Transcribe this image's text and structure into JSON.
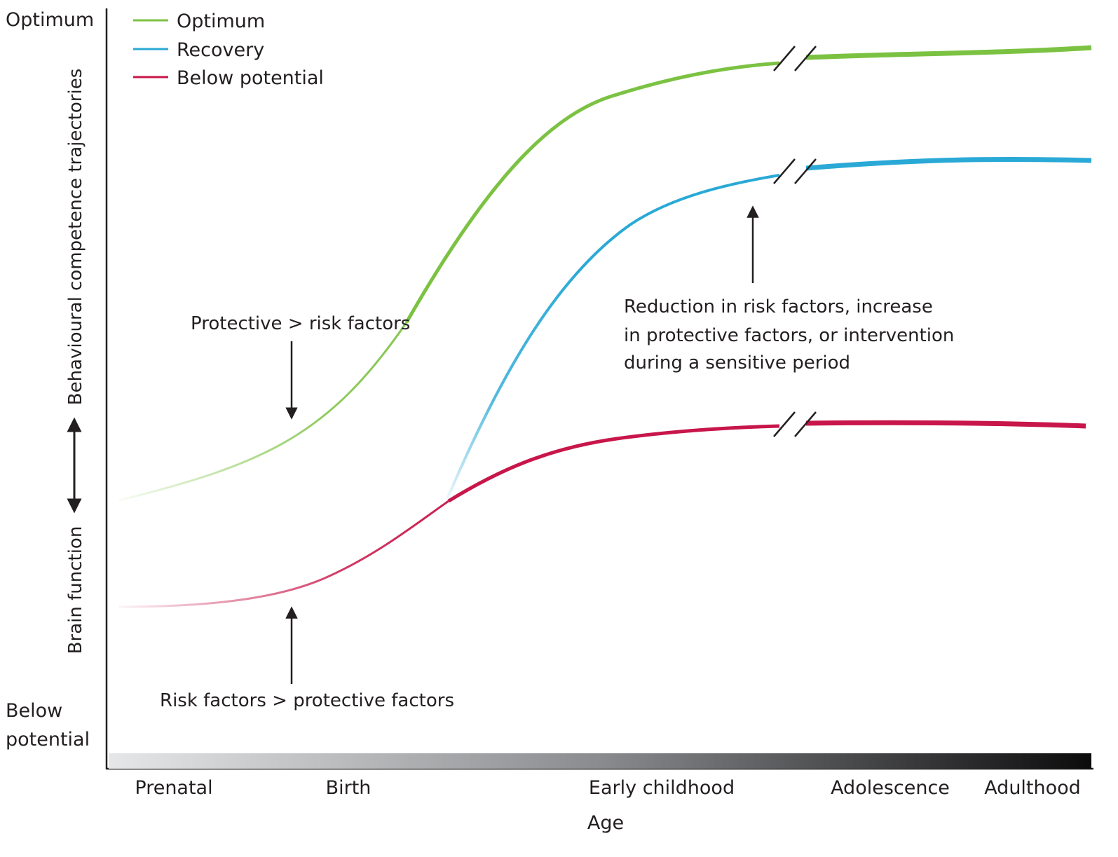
{
  "y_axis": {
    "top_label": "Optimum",
    "bottom_label_line1": "Below",
    "bottom_label_line2": "potential",
    "title_upper": "Behavioural competence trajectories",
    "title_lower": "Brain function"
  },
  "x_axis": {
    "title": "Age",
    "ticks": [
      "Prenatal",
      "Birth",
      "Early childhood",
      "Adolescence",
      "Adulthood"
    ]
  },
  "legend": [
    {
      "label": "Optimum",
      "color": "#7cc242"
    },
    {
      "label": "Recovery",
      "color": "#2aa9d6"
    },
    {
      "label": "Below potential",
      "color": "#c8164a"
    }
  ],
  "annotations": {
    "protective": "Protective > risk factors",
    "risk": "Risk factors > protective factors",
    "reduction_line1": "Reduction in risk factors, increase",
    "reduction_line2": "in protective factors, or intervention",
    "reduction_line3": "during a sensitive period"
  },
  "colors": {
    "optimum": "#7cc242",
    "recovery": "#2aa9d6",
    "below": "#c8164a",
    "axis": "#231f20"
  }
}
